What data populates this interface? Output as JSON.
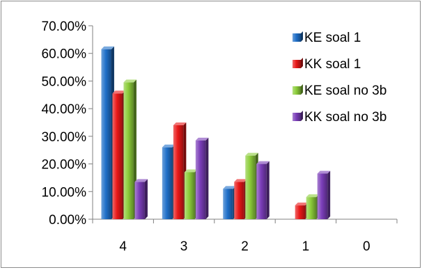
{
  "chart_data": {
    "type": "bar",
    "categories": [
      "4",
      "3",
      "2",
      "1",
      "0"
    ],
    "series": [
      {
        "name": "KE soal 1",
        "values": [
          61.5,
          26.0,
          11.0,
          0.0,
          0.0
        ],
        "color": "#1f6fc8"
      },
      {
        "name": "KK soal 1",
        "values": [
          45.5,
          34.0,
          13.5,
          5.0,
          0.0
        ],
        "color": "#e81818"
      },
      {
        "name": "KE soal no 3b",
        "values": [
          49.5,
          17.0,
          23.0,
          8.0,
          0.0
        ],
        "color": "#8ccd3a"
      },
      {
        "name": "KK soal no 3b",
        "values": [
          13.5,
          28.5,
          20.0,
          16.5,
          0.0
        ],
        "color": "#7a3db8"
      }
    ],
    "yticks": [
      "0.00%",
      "10.00%",
      "20.00%",
      "30.00%",
      "40.00%",
      "50.00%",
      "60.00%",
      "70.00%"
    ],
    "ylim": [
      0,
      70
    ],
    "grid": false,
    "legend_position": "right"
  }
}
